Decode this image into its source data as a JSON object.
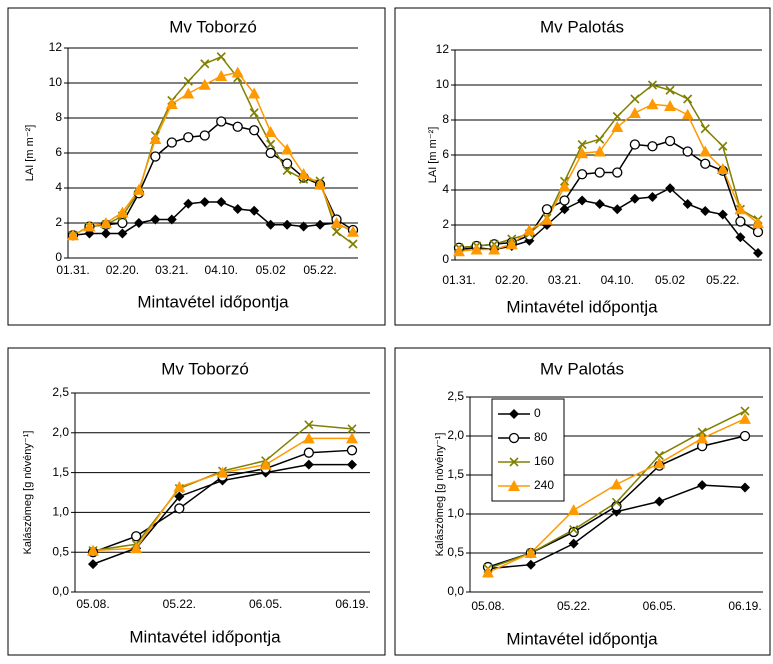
{
  "chart_data": [
    {
      "type": "line",
      "title": "Mv Toborzó",
      "x_label": "Mintavétel időpontja",
      "y_label": "LAI [m m⁻²]",
      "categories": [
        "01.31.",
        null,
        null,
        "02.20.",
        null,
        null,
        "03.21.",
        null,
        null,
        "04.10.",
        null,
        null,
        "05.02",
        null,
        null,
        "05.22.",
        null,
        null
      ],
      "ylim": [
        0,
        12
      ],
      "yticks": [
        0,
        2,
        4,
        6,
        8,
        10,
        12
      ],
      "grid": true,
      "series": [
        {
          "color": "#000000",
          "marker": "diamond",
          "values": [
            1.3,
            1.4,
            1.4,
            1.4,
            2.0,
            2.2,
            2.2,
            3.1,
            3.2,
            3.2,
            2.8,
            2.7,
            1.9,
            1.9,
            1.8,
            1.9,
            2.0,
            1.5
          ]
        },
        {
          "color": "#000000",
          "marker": "circle",
          "values": [
            1.3,
            1.8,
            1.9,
            2.0,
            3.7,
            5.8,
            6.6,
            6.9,
            7.0,
            7.8,
            7.5,
            7.3,
            6.0,
            5.4,
            4.6,
            4.2,
            2.2,
            1.6
          ]
        },
        {
          "color": "#808000",
          "marker": "x",
          "values": [
            1.3,
            1.8,
            1.9,
            2.4,
            3.8,
            7.0,
            9.0,
            10.1,
            11.1,
            11.5,
            10.3,
            8.3,
            6.5,
            5.0,
            4.5,
            4.4,
            1.5,
            0.8
          ]
        },
        {
          "color": "#ff9900",
          "marker": "triangle",
          "values": [
            1.3,
            1.8,
            2.0,
            2.6,
            3.9,
            6.8,
            8.8,
            9.4,
            9.9,
            10.4,
            10.6,
            9.4,
            7.2,
            6.2,
            4.8,
            4.2,
            2.0,
            1.5
          ]
        }
      ]
    },
    {
      "type": "line",
      "title": "Mv Palotás",
      "x_label": "Mintavétel időpontja",
      "y_label": "LAI [m m⁻²]",
      "categories": [
        "01.31.",
        null,
        null,
        "02.20.",
        null,
        null,
        "03.21.",
        null,
        null,
        "04.10.",
        null,
        null,
        "05.02",
        null,
        null,
        "05.22.",
        null,
        null
      ],
      "ylim": [
        0,
        12
      ],
      "yticks": [
        0,
        2,
        4,
        6,
        8,
        10,
        12
      ],
      "grid": true,
      "series": [
        {
          "color": "#000000",
          "marker": "diamond",
          "values": [
            0.6,
            0.7,
            0.6,
            0.8,
            1.1,
            2.0,
            2.9,
            3.4,
            3.2,
            2.9,
            3.5,
            3.6,
            4.1,
            3.2,
            2.8,
            2.6,
            1.3,
            0.4
          ]
        },
        {
          "color": "#000000",
          "marker": "circle",
          "values": [
            0.7,
            0.8,
            0.9,
            1.0,
            1.4,
            2.9,
            3.4,
            4.9,
            5.0,
            5.0,
            6.6,
            6.5,
            6.8,
            6.2,
            5.5,
            5.1,
            2.2,
            1.6
          ]
        },
        {
          "color": "#808000",
          "marker": "x",
          "values": [
            0.7,
            0.8,
            0.9,
            1.2,
            1.5,
            2.4,
            4.5,
            6.6,
            6.9,
            8.2,
            9.2,
            10.0,
            9.7,
            9.2,
            7.5,
            6.5,
            2.9,
            2.3
          ]
        },
        {
          "color": "#ff9900",
          "marker": "triangle",
          "values": [
            0.5,
            0.6,
            0.6,
            0.9,
            1.7,
            2.3,
            4.2,
            6.1,
            6.2,
            7.6,
            8.4,
            8.9,
            8.8,
            8.3,
            6.2,
            5.2,
            2.9,
            2.1
          ]
        }
      ]
    },
    {
      "type": "line",
      "title": "Mv Toborzó",
      "x_label": "Mintavétel időpontja",
      "y_label": "Kalászömeg [g növény⁻¹]",
      "categories": [
        "05.08.",
        null,
        "05.22.",
        null,
        "06.05.",
        null,
        "06.19."
      ],
      "ylim": [
        0,
        2.5
      ],
      "yticks": [
        {
          "value": 0,
          "label": "0,0"
        },
        {
          "value": 0.5,
          "label": "0,5"
        },
        {
          "value": 1,
          "label": "1,0"
        },
        {
          "value": 1.5,
          "label": "1,5"
        },
        {
          "value": 2,
          "label": "2,0"
        },
        {
          "value": 2.5,
          "label": "2,5"
        }
      ],
      "grid": true,
      "series": [
        {
          "color": "#000000",
          "marker": "diamond",
          "values": [
            0.35,
            0.55,
            1.2,
            1.4,
            1.5,
            1.6,
            1.6
          ]
        },
        {
          "color": "#000000",
          "marker": "circle",
          "values": [
            0.5,
            0.7,
            1.05,
            1.45,
            1.55,
            1.75,
            1.78
          ]
        },
        {
          "color": "#808000",
          "marker": "x",
          "values": [
            0.52,
            0.6,
            1.3,
            1.52,
            1.65,
            2.1,
            2.05
          ]
        },
        {
          "color": "#ff9900",
          "marker": "triangle",
          "values": [
            0.52,
            0.55,
            1.32,
            1.5,
            1.6,
            1.93,
            1.93
          ]
        }
      ]
    },
    {
      "type": "line",
      "title": "Mv Palotás",
      "x_label": "Mintavétel időpontja",
      "y_label": "Kalászömeg [g növény⁻¹]",
      "categories": [
        "05.08.",
        null,
        "05.22.",
        null,
        "06.05.",
        null,
        "06.19."
      ],
      "ylim": [
        0,
        2.5
      ],
      "yticks": [
        {
          "value": 0,
          "label": "0,0"
        },
        {
          "value": 0.5,
          "label": "0,5"
        },
        {
          "value": 1,
          "label": "1,0"
        },
        {
          "value": 1.5,
          "label": "1,5"
        },
        {
          "value": 2,
          "label": "2,0"
        },
        {
          "value": 2.5,
          "label": "2,5"
        }
      ],
      "grid": true,
      "legend": "upper left",
      "series": [
        {
          "name": "0",
          "color": "#000000",
          "marker": "diamond",
          "values": [
            0.3,
            0.35,
            0.62,
            1.03,
            1.16,
            1.37,
            1.34
          ]
        },
        {
          "name": "80",
          "color": "#000000",
          "marker": "circle",
          "values": [
            0.32,
            0.5,
            0.77,
            1.1,
            1.62,
            1.87,
            2.0
          ]
        },
        {
          "name": "160",
          "color": "#808000",
          "marker": "x",
          "values": [
            0.3,
            0.5,
            0.8,
            1.15,
            1.75,
            2.05,
            2.32
          ]
        },
        {
          "name": "240",
          "color": "#ff9900",
          "marker": "triangle",
          "values": [
            0.25,
            0.5,
            1.05,
            1.38,
            1.65,
            1.97,
            2.22
          ]
        }
      ]
    }
  ]
}
